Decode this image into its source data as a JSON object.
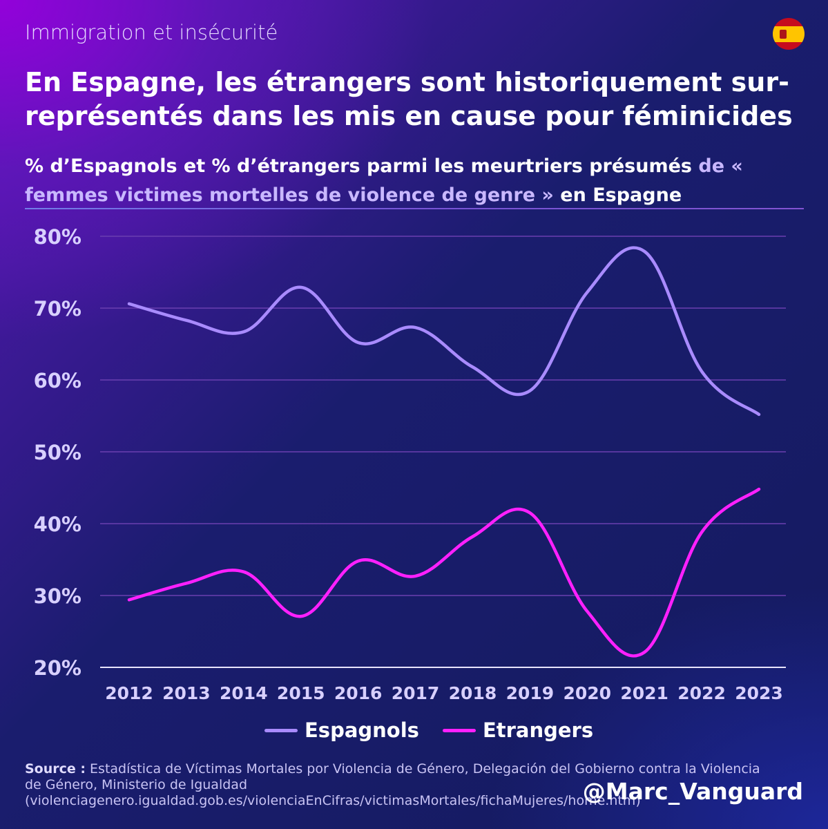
{
  "kicker": "Immigration et insécurité",
  "title": "En Espagne, les étrangers sont historiquement sur-représentés dans les mis en cause pour féminicides",
  "subtitle_main": "% d’Espagnols et % d’étrangers parmi les meurtriers présumés ",
  "subtitle_accent": "de « femmes victimes mortelles de violence de genre »",
  "subtitle_end": " en Espagne",
  "source_label": "Source :",
  "source_text": " Estadística de Víctimas Mortales por Violencia de Género, Delegación del Gobierno contra la Violencia de Género, Ministerio de Igualdad (violenciagenero.igualdad.gob.es/violenciaEnCifras/victimasMortales/fichaMujeres/home.htm)",
  "handle": "@Marc_Vanguard",
  "colors": {
    "espagnols": "#a98bff",
    "etrangers": "#ff20ff",
    "grid": "#6a3fb0",
    "axis_label": "#d8d0ff"
  },
  "chart_data": {
    "type": "line",
    "title": "% d’Espagnols et % d’étrangers parmi les meurtriers présumés de « femmes victimes mortelles de violence de genre » en Espagne",
    "xlabel": "",
    "ylabel": "",
    "ylim": [
      20,
      80
    ],
    "yticks": [
      "20%",
      "30%",
      "40%",
      "50%",
      "60%",
      "70%",
      "80%"
    ],
    "ytick_values": [
      20,
      30,
      40,
      50,
      60,
      70,
      80
    ],
    "categories": [
      "2012",
      "2013",
      "2014",
      "2015",
      "2016",
      "2017",
      "2018",
      "2019",
      "2020",
      "2021",
      "2022",
      "2023"
    ],
    "series": [
      {
        "name": "Espagnols",
        "values": [
          70.6,
          68.3,
          66.7,
          72.9,
          65.2,
          67.3,
          61.8,
          58.5,
          72.2,
          77.9,
          61.2,
          55.2
        ]
      },
      {
        "name": "Etrangers",
        "values": [
          29.4,
          31.7,
          33.3,
          27.1,
          34.8,
          32.7,
          38.2,
          41.5,
          27.8,
          22.1,
          38.8,
          44.8
        ]
      }
    ],
    "legend": [
      "Espagnols",
      "Etrangers"
    ],
    "legend_position": "bottom",
    "grid": true
  }
}
